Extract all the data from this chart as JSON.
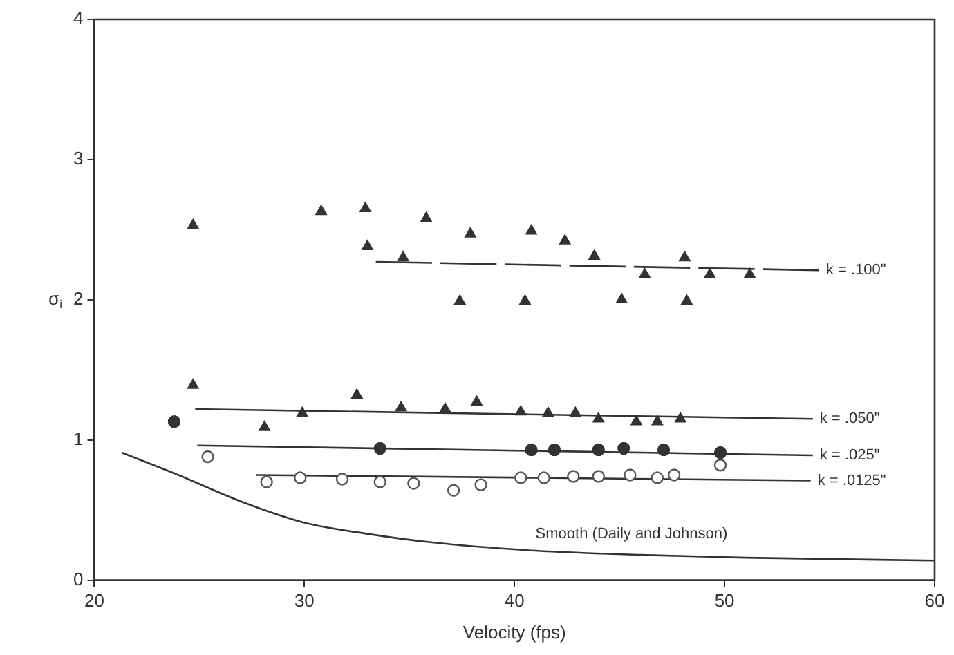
{
  "chart_data": {
    "type": "scatter",
    "xlabel": "Velocity (fps)",
    "ylabel": "σ$_{i}$",
    "xlim": [
      20,
      60
    ],
    "xticks": [
      20,
      30,
      40,
      50,
      60
    ],
    "ylim": [
      0,
      4
    ],
    "yticks": [
      0,
      1,
      2,
      3,
      4
    ],
    "grid": false,
    "legend": false,
    "series": [
      {
        "type": "scatter",
        "marker": "triangle",
        "color": "#333333",
        "x": [
          24.7,
          30.8,
          32.9,
          33.0,
          34.7,
          35.8,
          37.9,
          37.4,
          40.5,
          40.8,
          42.4,
          43.8,
          45.1,
          46.2,
          48.1,
          48.2,
          49.3,
          51.2
        ],
        "values": [
          2.53,
          2.63,
          2.65,
          2.38,
          2.3,
          2.58,
          2.47,
          1.99,
          1.99,
          2.49,
          2.42,
          2.31,
          2.0,
          2.18,
          2.3,
          1.99,
          2.18,
          2.18
        ]
      },
      {
        "type": "scatter",
        "marker": "triangle",
        "color": "#333333",
        "x": [
          24.7,
          28.1,
          29.9,
          32.5,
          34.6,
          36.7,
          38.2,
          40.3,
          41.6,
          42.9,
          44.0,
          45.8,
          46.8,
          47.9
        ],
        "values": [
          1.39,
          1.09,
          1.19,
          1.32,
          1.23,
          1.22,
          1.27,
          1.2,
          1.19,
          1.19,
          1.15,
          1.13,
          1.13,
          1.15
        ]
      },
      {
        "type": "scatter",
        "marker": "circle",
        "color": "#333333",
        "x": [
          23.8,
          33.6,
          40.8,
          41.9,
          44.0,
          45.2,
          47.1,
          49.8
        ],
        "values": [
          1.13,
          0.94,
          0.93,
          0.93,
          0.93,
          0.94,
          0.93,
          0.91
        ]
      },
      {
        "type": "scatter",
        "marker": "circle",
        "color": "#555555",
        "x": [
          25.4,
          28.2,
          29.8,
          31.8,
          33.6,
          35.2,
          37.1,
          38.4,
          40.3,
          41.4,
          42.8,
          44.0,
          45.5,
          46.8,
          47.6,
          49.8
        ],
        "values": [
          0.88,
          0.7,
          0.73,
          0.72,
          0.7,
          0.69,
          0.64,
          0.68,
          0.73,
          0.73,
          0.74,
          0.74,
          0.75,
          0.73,
          0.75,
          0.82
        ]
      },
      {
        "type": "line",
        "name": "k = .100\"",
        "marker": "none",
        "line_style": "dashed",
        "color": "#333333",
        "x": [
          33.4,
          54.5
        ],
        "values": [
          2.27,
          2.21
        ]
      },
      {
        "type": "line",
        "name": "k = .050\"",
        "marker": "none",
        "line_style": "solid",
        "color": "#333333",
        "x": [
          24.8,
          54.2
        ],
        "values": [
          1.22,
          1.15
        ]
      },
      {
        "type": "line",
        "name": "k = .025\"",
        "marker": "none",
        "line_style": "solid",
        "color": "#333333",
        "x": [
          24.9,
          54.2
        ],
        "values": [
          0.96,
          0.89
        ]
      },
      {
        "type": "line",
        "name": "k = .0125\"",
        "marker": "none",
        "line_style": "solid",
        "color": "#333333",
        "x": [
          27.7,
          54.1
        ],
        "values": [
          0.75,
          0.71
        ]
      },
      {
        "type": "line",
        "name": "Smooth (Daily and Johnson)",
        "marker": "none",
        "line_style": "solid",
        "color": "#333333",
        "x": [
          21.3,
          24,
          27,
          30,
          33,
          36,
          41,
          46,
          51,
          60
        ],
        "values": [
          0.91,
          0.75,
          0.56,
          0.41,
          0.33,
          0.27,
          0.21,
          0.18,
          0.16,
          0.14
        ]
      }
    ]
  }
}
